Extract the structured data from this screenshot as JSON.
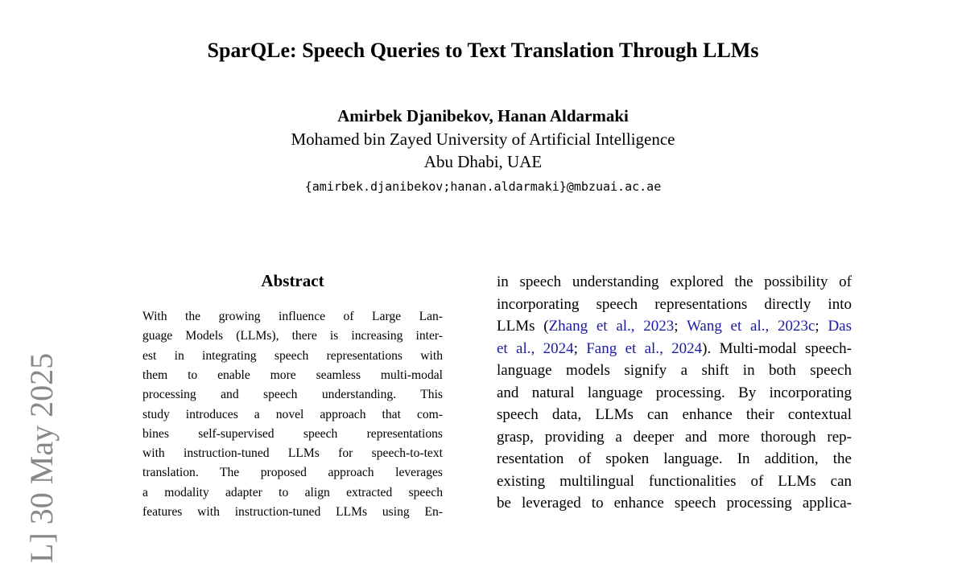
{
  "sidebar": "L]  30 May 2025",
  "header": {
    "title": "SparQLe: Speech Queries to Text Translation Through LLMs",
    "authors": "Amirbek Djanibekov, Hanan Aldarmaki",
    "affiliation": "Mohamed bin Zayed University of Artificial Intelligence",
    "location": "Abu Dhabi, UAE",
    "email": "{amirbek.djanibekov;hanan.aldarmaki}@mbzuai.ac.ae"
  },
  "abstract": {
    "heading": "Abstract",
    "lines": [
      "With the growing influence of Large Lan-",
      "guage Models (LLMs), there is increasing inter-",
      "est in integrating speech representations with",
      "them to enable more seamless multi-modal",
      "processing and speech understanding.  This",
      "study introduces a novel approach that com-",
      "bines self-supervised speech representations",
      "with instruction-tuned LLMs for speech-to-text",
      "translation. The proposed approach leverages",
      "a modality adapter to align extracted speech",
      "features with instruction-tuned LLMs using En-"
    ]
  },
  "body": {
    "lines": [
      [
        "in speech understanding explored the possibility of"
      ],
      [
        "incorporating speech representations directly into"
      ],
      [
        "LLMs (",
        {
          "cite": "Zhang et al., 2023"
        },
        "; ",
        {
          "cite": "Wang et al., 2023c"
        },
        "; ",
        {
          "cite": "Das"
        }
      ],
      [
        {
          "cite": "et al., 2024"
        },
        "; ",
        {
          "cite": "Fang et al., 2024"
        },
        "). Multi-modal speech-"
      ],
      [
        "language models signify a shift in both speech"
      ],
      [
        "and natural language processing. By incorporating"
      ],
      [
        "speech data, LLMs can enhance their contextual"
      ],
      [
        "grasp, providing a deeper and more thorough rep-"
      ],
      [
        "resentation of spoken language.  In addition, the"
      ],
      [
        "existing multilingual functionalities of LLMs can"
      ],
      [
        "be leveraged to enhance speech processing applica-"
      ]
    ]
  }
}
